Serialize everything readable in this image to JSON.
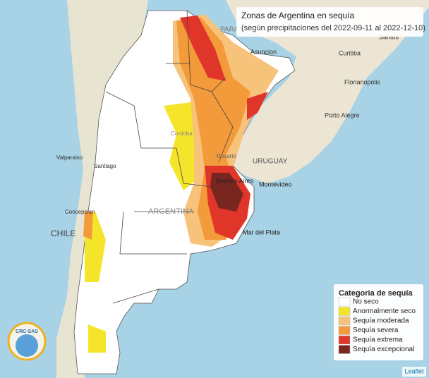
{
  "map": {
    "title": "Zonas de Argentina en sequía",
    "subtitle": "(según precipitaciones del 2022-09-11 al 2022-12-10)",
    "legend": {
      "title": "Categoria de sequía",
      "items": [
        {
          "label": "No seco",
          "color": "#ffffff"
        },
        {
          "label": "Anormalmente seco",
          "color": "#f5e52a"
        },
        {
          "label": "Sequía moderada",
          "color": "#f7c27a"
        },
        {
          "label": "Sequía severa",
          "color": "#f39a3a"
        },
        {
          "label": "Sequía extrema",
          "color": "#e0362a"
        },
        {
          "label": "Sequía excepcional",
          "color": "#7a2620"
        }
      ]
    },
    "places": [
      {
        "label": "PARA"
      },
      {
        "label": "Asuncion"
      },
      {
        "label": "Curitiba"
      },
      {
        "label": "Santos"
      },
      {
        "label": "Florianopolis"
      },
      {
        "label": "Porto Alegre"
      },
      {
        "label": "URUGUAY"
      },
      {
        "label": "Montevideo"
      },
      {
        "label": "Buenos Aires"
      },
      {
        "label": "Mar del Plata"
      },
      {
        "label": "Rosario"
      },
      {
        "label": "Cordoba"
      },
      {
        "label": "Valparaiso"
      },
      {
        "label": "Santiago"
      },
      {
        "label": "Concepcion"
      },
      {
        "label": "CHILE"
      },
      {
        "label": "ARGENTINA"
      }
    ],
    "logo": "CRC-SAS",
    "attribution": "Leaflet"
  }
}
